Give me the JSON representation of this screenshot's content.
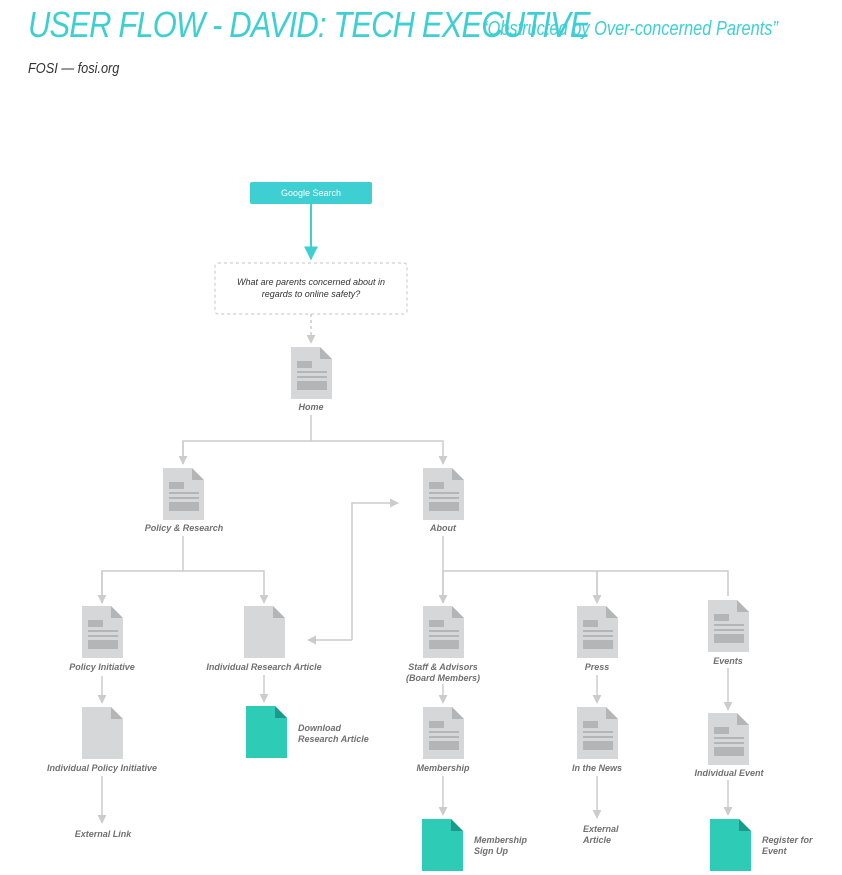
{
  "title": "USER FLOW - DAVID: TECH EXECUTIVE",
  "subtitle": "“Obstructed by Over-concerned Parents”",
  "site": "FOSI — fosi.org",
  "colors": {
    "accent": "#3ecfd3",
    "teal_doc": "#2ecbb7",
    "page_gray": "#d5d7d8",
    "page_fold": "#b3b5b6",
    "connector": "#cccccc",
    "label": "#707070"
  },
  "flow": {
    "start": "Google Search",
    "question_line1": "What are parents concerned about in",
    "question_line2": "regards to online safety?",
    "home": "Home",
    "policy_research": "Policy & Research",
    "about": "About",
    "policy_initiative": "Policy Initiative",
    "individual_research_article": "Individual Research Article",
    "staff_advisors_line1": "Staff & Advisors",
    "staff_advisors_line2": "(Board Members)",
    "press": "Press",
    "events": "Events",
    "individual_policy_initiative": "Individual Policy Initiative",
    "download_line1": "Download",
    "download_line2": "Research Article",
    "membership": "Membership",
    "in_the_news": "In the News",
    "individual_event": "Individual Event",
    "external_link": "External Link",
    "membership_signup_line1": "Membership",
    "membership_signup_line2": "Sign Up",
    "external_article_line1": "External",
    "external_article_line2": "Article",
    "register_line1": "Register for",
    "register_line2": "Event"
  }
}
